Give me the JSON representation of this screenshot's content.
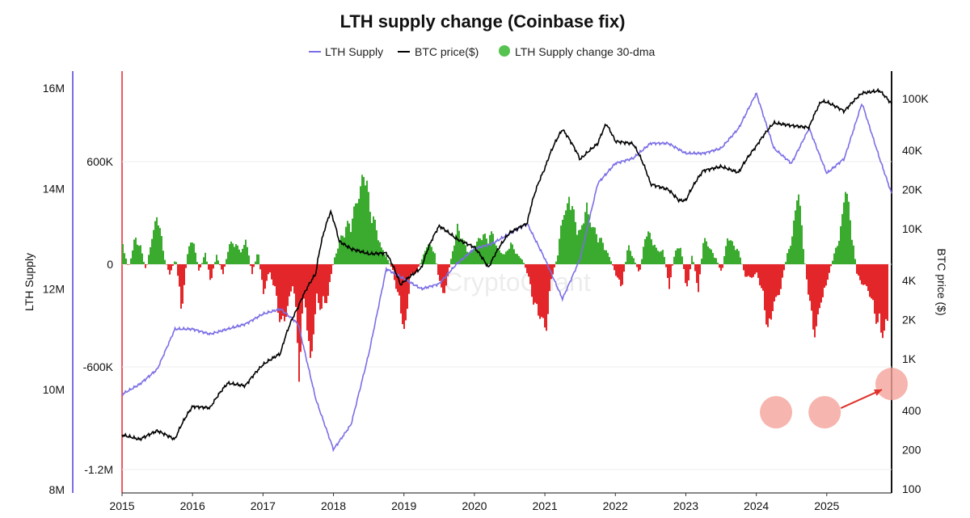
{
  "chart_data": {
    "type": "area",
    "title": "LTH supply change (Coinbase fix)",
    "watermark": "CryptoQuant",
    "legend": [
      {
        "label": "LTH Supply",
        "color": "#7b6ee6",
        "kind": "line"
      },
      {
        "label": "BTC price($)",
        "color": "#000000",
        "kind": "line"
      },
      {
        "label": "LTH Supply change 30-dma",
        "color": "#56c250",
        "kind": "dot"
      }
    ],
    "ylabel_left": "LTH Supply",
    "ylabel_right": "BTC price ($)",
    "x_ticks": [
      "2015",
      "2016",
      "2017",
      "2018",
      "2019",
      "2020",
      "2021",
      "2022",
      "2023",
      "2024",
      "2025"
    ],
    "x_range": [
      2015.0,
      2025.92
    ],
    "y_left_outer": {
      "ticks": [
        "16M",
        "14M",
        "12M",
        "10M",
        "8M"
      ],
      "range": [
        8000000,
        16000000
      ]
    },
    "y_left_inner": {
      "ticks": [
        "600K",
        "0",
        "-600K",
        "-1.2M"
      ],
      "range": [
        -1200000,
        600000
      ]
    },
    "y_right": {
      "ticks": [
        "100K",
        "40K",
        "20K",
        "10K",
        "4K",
        "2K",
        "1K",
        "400",
        "200",
        "100"
      ],
      "scale": "log",
      "range": [
        100,
        100000
      ]
    },
    "colors": {
      "positive": "#3aab2e",
      "negative": "#e3262a",
      "lth_supply": "#7b6ee6",
      "btc_price": "#000000",
      "highlight": "#f4a29a",
      "arrow": "#e0322a"
    },
    "lth_supply_change": {
      "name": "LTH Supply change 30-dma",
      "x": [
        2015.0,
        2015.08,
        2015.17,
        2015.25,
        2015.33,
        2015.42,
        2015.5,
        2015.58,
        2015.67,
        2015.75,
        2015.83,
        2015.92,
        2016.0,
        2016.08,
        2016.17,
        2016.25,
        2016.33,
        2016.42,
        2016.5,
        2016.58,
        2016.67,
        2016.75,
        2016.83,
        2016.92,
        2017.0,
        2017.08,
        2017.17,
        2017.25,
        2017.33,
        2017.42,
        2017.5,
        2017.58,
        2017.67,
        2017.75,
        2017.83,
        2017.92,
        2018.0,
        2018.08,
        2018.17,
        2018.25,
        2018.33,
        2018.42,
        2018.5,
        2018.58,
        2018.67,
        2018.75,
        2018.83,
        2018.92,
        2019.0,
        2019.08,
        2019.17,
        2019.25,
        2019.33,
        2019.42,
        2019.5,
        2019.58,
        2019.67,
        2019.75,
        2019.83,
        2019.92,
        2020.0,
        2020.08,
        2020.17,
        2020.25,
        2020.33,
        2020.42,
        2020.5,
        2020.58,
        2020.67,
        2020.75,
        2020.83,
        2020.92,
        2021.0,
        2021.08,
        2021.17,
        2021.25,
        2021.33,
        2021.42,
        2021.5,
        2021.58,
        2021.67,
        2021.75,
        2021.83,
        2021.92,
        2022.0,
        2022.08,
        2022.17,
        2022.25,
        2022.33,
        2022.42,
        2022.5,
        2022.58,
        2022.67,
        2022.75,
        2022.83,
        2022.92,
        2023.0,
        2023.08,
        2023.17,
        2023.25,
        2023.33,
        2023.42,
        2023.5,
        2023.58,
        2023.67,
        2023.75,
        2023.83,
        2023.92,
        2024.0,
        2024.08,
        2024.17,
        2024.25,
        2024.33,
        2024.42,
        2024.5,
        2024.58,
        2024.67,
        2024.75,
        2024.83,
        2024.92,
        2025.0,
        2025.08,
        2025.17,
        2025.25,
        2025.33,
        2025.42,
        2025.5,
        2025.58,
        2025.67,
        2025.75,
        2025.83,
        2025.92
      ],
      "values": [
        150000,
        -30000,
        180000,
        120000,
        -50000,
        250000,
        350000,
        60000,
        -80000,
        50000,
        -320000,
        80000,
        200000,
        -60000,
        80000,
        -120000,
        70000,
        -80000,
        120000,
        150000,
        100000,
        200000,
        -70000,
        90000,
        -250000,
        -50000,
        -200000,
        -420000,
        -380000,
        -130000,
        -700000,
        -180000,
        -870000,
        -250000,
        -300000,
        -200000,
        50000,
        180000,
        240000,
        300000,
        550000,
        700000,
        380000,
        280000,
        150000,
        40000,
        -40000,
        -250000,
        -600000,
        -80000,
        -50000,
        40000,
        180000,
        100000,
        -150000,
        -200000,
        90000,
        260000,
        150000,
        80000,
        160000,
        200000,
        170000,
        230000,
        120000,
        60000,
        140000,
        90000,
        40000,
        -80000,
        -250000,
        -400000,
        -550000,
        -100000,
        60000,
        400000,
        550000,
        280000,
        200000,
        480000,
        280000,
        180000,
        130000,
        40000,
        -90000,
        -150000,
        130000,
        50000,
        -80000,
        220000,
        180000,
        120000,
        100000,
        -160000,
        80000,
        150000,
        -220000,
        70000,
        -190000,
        250000,
        110000,
        40000,
        -70000,
        230000,
        140000,
        70000,
        -80000,
        -120000,
        -60000,
        -200000,
        -500000,
        -320000,
        -180000,
        50000,
        200000,
        650000,
        50000,
        -280000,
        -520000,
        -300000,
        -100000,
        40000,
        200000,
        650000,
        280000,
        -80000,
        -150000,
        -220000,
        -320000,
        -450000,
        -480000,
        -430000
      ]
    },
    "lth_supply": {
      "name": "LTH Supply",
      "x": [
        2015.0,
        2015.25,
        2015.5,
        2015.75,
        2016.0,
        2016.25,
        2016.5,
        2016.75,
        2017.0,
        2017.25,
        2017.5,
        2017.75,
        2018.0,
        2018.25,
        2018.5,
        2018.75,
        2019.0,
        2019.25,
        2019.5,
        2019.75,
        2020.0,
        2020.25,
        2020.5,
        2020.75,
        2021.0,
        2021.25,
        2021.5,
        2021.75,
        2022.0,
        2022.25,
        2022.5,
        2022.75,
        2023.0,
        2023.25,
        2023.5,
        2023.75,
        2024.0,
        2024.25,
        2024.5,
        2024.75,
        2025.0,
        2025.25,
        2025.5,
        2025.75,
        2025.92
      ],
      "values": [
        9900000,
        10100000,
        10400000,
        11200000,
        11200000,
        11100000,
        11200000,
        11300000,
        11500000,
        11600000,
        11300000,
        9800000,
        8800000,
        9300000,
        10700000,
        12400000,
        12200000,
        12000000,
        12100000,
        12500000,
        12800000,
        12900000,
        13100000,
        13300000,
        12600000,
        11800000,
        12600000,
        14100000,
        14500000,
        14600000,
        14900000,
        14900000,
        14700000,
        14700000,
        14800000,
        15200000,
        15900000,
        14800000,
        14500000,
        15200000,
        14300000,
        14600000,
        15700000,
        14600000,
        13900000
      ]
    },
    "btc_price": {
      "name": "BTC price($)",
      "x": [
        2015.0,
        2015.25,
        2015.5,
        2015.75,
        2016.0,
        2016.25,
        2016.5,
        2016.75,
        2017.0,
        2017.25,
        2017.5,
        2017.75,
        2017.96,
        2018.08,
        2018.25,
        2018.5,
        2018.75,
        2018.95,
        2019.25,
        2019.5,
        2019.75,
        2020.0,
        2020.2,
        2020.5,
        2020.75,
        2021.0,
        2021.25,
        2021.5,
        2021.75,
        2021.87,
        2022.0,
        2022.25,
        2022.5,
        2022.75,
        2022.9,
        2023.0,
        2023.25,
        2023.5,
        2023.75,
        2024.0,
        2024.25,
        2024.5,
        2024.75,
        2024.92,
        2025.0,
        2025.25,
        2025.5,
        2025.75,
        2025.92
      ],
      "values": [
        260,
        240,
        280,
        240,
        430,
        420,
        650,
        620,
        900,
        1100,
        2500,
        4500,
        13500,
        8000,
        7000,
        6400,
        6500,
        3700,
        5000,
        10500,
        8300,
        7200,
        5000,
        9300,
        11000,
        29000,
        58000,
        34000,
        45000,
        64000,
        47000,
        45000,
        22000,
        20000,
        16500,
        16500,
        28000,
        30000,
        27000,
        43000,
        65000,
        62000,
        60000,
        95000,
        94000,
        80000,
        110000,
        115000,
        91000
      ]
    },
    "highlights": [
      {
        "x": 2024.28,
        "y": -865000
      },
      {
        "x": 2024.97,
        "y": -865000
      },
      {
        "x": 2025.92,
        "y": -700000
      }
    ]
  }
}
